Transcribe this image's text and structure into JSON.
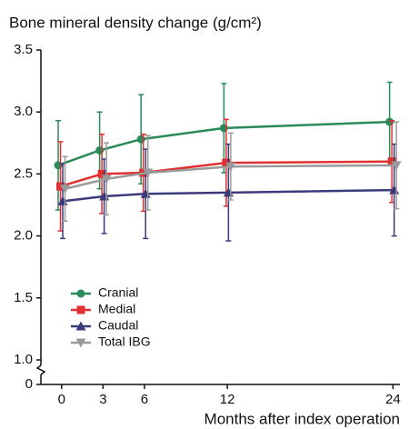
{
  "chart_data": {
    "type": "line",
    "title": "Bone mineral density change (g/cm²)",
    "x_label": "Months after index operation",
    "x": [
      0,
      3,
      6,
      12,
      24
    ],
    "xlim": [
      -1.5,
      24.5
    ],
    "xticks": [
      0,
      3,
      6,
      12,
      24
    ],
    "ylim": [
      0,
      3.5
    ],
    "y_break": [
      0,
      1
    ],
    "yticks": [
      0,
      {
        "value": 1,
        "label": "1.0"
      },
      1.5,
      {
        "value": 2,
        "label": "2.0"
      },
      2.5,
      {
        "value": 3,
        "label": "3.0"
      },
      3.5
    ],
    "legend": "lower left",
    "series": [
      {
        "name": "Cranial",
        "color": "#2a8a5a",
        "marker": "circle",
        "values": [
          2.57,
          2.69,
          2.78,
          2.87,
          2.92
        ],
        "errors": [
          0.36,
          0.31,
          0.36,
          0.36,
          0.32
        ]
      },
      {
        "name": "Medial",
        "color": "#e03030",
        "marker": "square",
        "values": [
          2.4,
          2.5,
          2.51,
          2.59,
          2.6
        ],
        "errors": [
          0.36,
          0.32,
          0.31,
          0.35,
          0.33
        ]
      },
      {
        "name": "Caudal",
        "color": "#3b3b7c",
        "marker": "triangle-up",
        "values": [
          2.28,
          2.32,
          2.34,
          2.35,
          2.37
        ],
        "errors": [
          0.3,
          0.3,
          0.36,
          0.39,
          0.37
        ]
      },
      {
        "name": "Total IBG",
        "color": "#9a9a9a",
        "marker": "triangle-down",
        "values": [
          2.38,
          2.46,
          2.51,
          2.56,
          2.57
        ],
        "errors": [
          0.26,
          0.29,
          0.3,
          0.27,
          0.35
        ]
      }
    ]
  }
}
